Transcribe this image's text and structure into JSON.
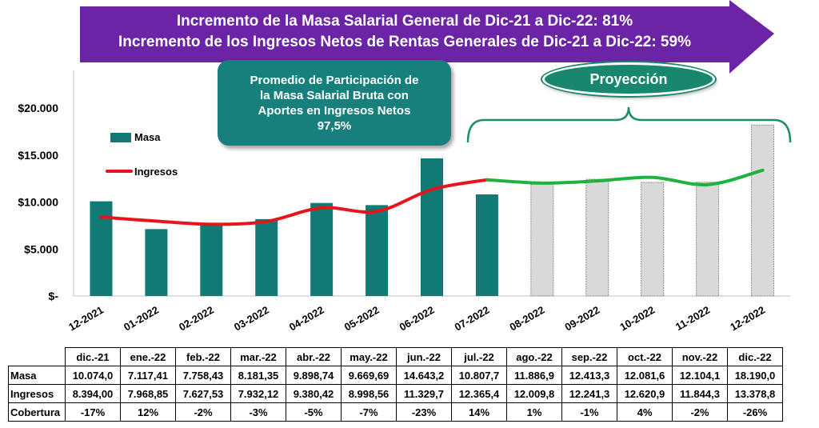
{
  "banner": {
    "line1": "Incremento de la Masa Salarial General de Dic-21 a Dic-22: 81%",
    "line2": "Incremento de los Ingresos Netos de Rentas Generales de Dic-21 a Dic-22: 59%"
  },
  "callout": {
    "line1": "Promedio de Participación de",
    "line2": "la Masa Salarial Bruta con",
    "line3": "Aportes  en Ingresos Netos",
    "line4": "97,5%"
  },
  "projection_label": "Proyección",
  "colors": {
    "masa": "#117a74",
    "projected_bar": "#d9d9d9",
    "ingresos": "#e8141c",
    "ingresos_projected": "#1eb33f",
    "banner": "#6b24a6",
    "callout": "#17807c"
  },
  "chart_data": {
    "type": "bar",
    "title": "",
    "categories": [
      "12-2021",
      "01-2022",
      "02-2022",
      "03-2022",
      "04-2022",
      "05-2022",
      "06-2022",
      "07-2022",
      "08-2022",
      "09-2022",
      "10-2022",
      "11-2022",
      "12-2022"
    ],
    "ylim": [
      0,
      20000
    ],
    "yticks": [
      "$-",
      "$5.000",
      "$10.000",
      "$15.000",
      "$20.000"
    ],
    "ytick_values": [
      0,
      5000,
      10000,
      15000,
      20000
    ],
    "legend": [
      "Masa",
      "Ingresos"
    ],
    "projection_start_index": 8,
    "series": [
      {
        "name": "Masa",
        "type": "bar",
        "values": [
          10074.0,
          7117.41,
          7758.43,
          8181.35,
          9898.74,
          9669.69,
          14643.2,
          10807.7,
          11886.9,
          12413.3,
          12081.6,
          12104.1,
          18190.0
        ]
      },
      {
        "name": "Ingresos",
        "type": "line",
        "values": [
          8394.0,
          7968.85,
          7627.53,
          7932.12,
          9380.42,
          8998.56,
          11329.7,
          12365.4,
          12009.8,
          12241.3,
          12620.9,
          11844.3,
          13378.8
        ]
      }
    ]
  },
  "table": {
    "headers": [
      "dic.-21",
      "ene.-22",
      "feb.-22",
      "mar.-22",
      "abr.-22",
      "may.-22",
      "jun.-22",
      "jul.-22",
      "ago.-22",
      "sep.-22",
      "oct.-22",
      "nov.-22",
      "dic.-22"
    ],
    "rows": [
      {
        "label": "Masa",
        "cells": [
          "10.074,0",
          "7.117,41",
          "7.758,43",
          "8.181,35",
          "9.898,74",
          "9.669,69",
          "14.643,2",
          "10.807,7",
          "11.886,9",
          "12.413,3",
          "12.081,6",
          "12.104,1",
          "18.190,0"
        ]
      },
      {
        "label": "Ingresos",
        "cells": [
          "8.394,00",
          "7.968,85",
          "7.627,53",
          "7.932,12",
          "9.380,42",
          "8.998,56",
          "11.329,7",
          "12.365,4",
          "12.009,8",
          "12.241,3",
          "12.620,9",
          "11.844,3",
          "13.378,8"
        ]
      },
      {
        "label": "Cobertura",
        "cells": [
          "-17%",
          "12%",
          "-2%",
          "-3%",
          "-5%",
          "-7%",
          "-23%",
          "14%",
          "1%",
          "-1%",
          "4%",
          "-2%",
          "-26%"
        ]
      }
    ]
  }
}
